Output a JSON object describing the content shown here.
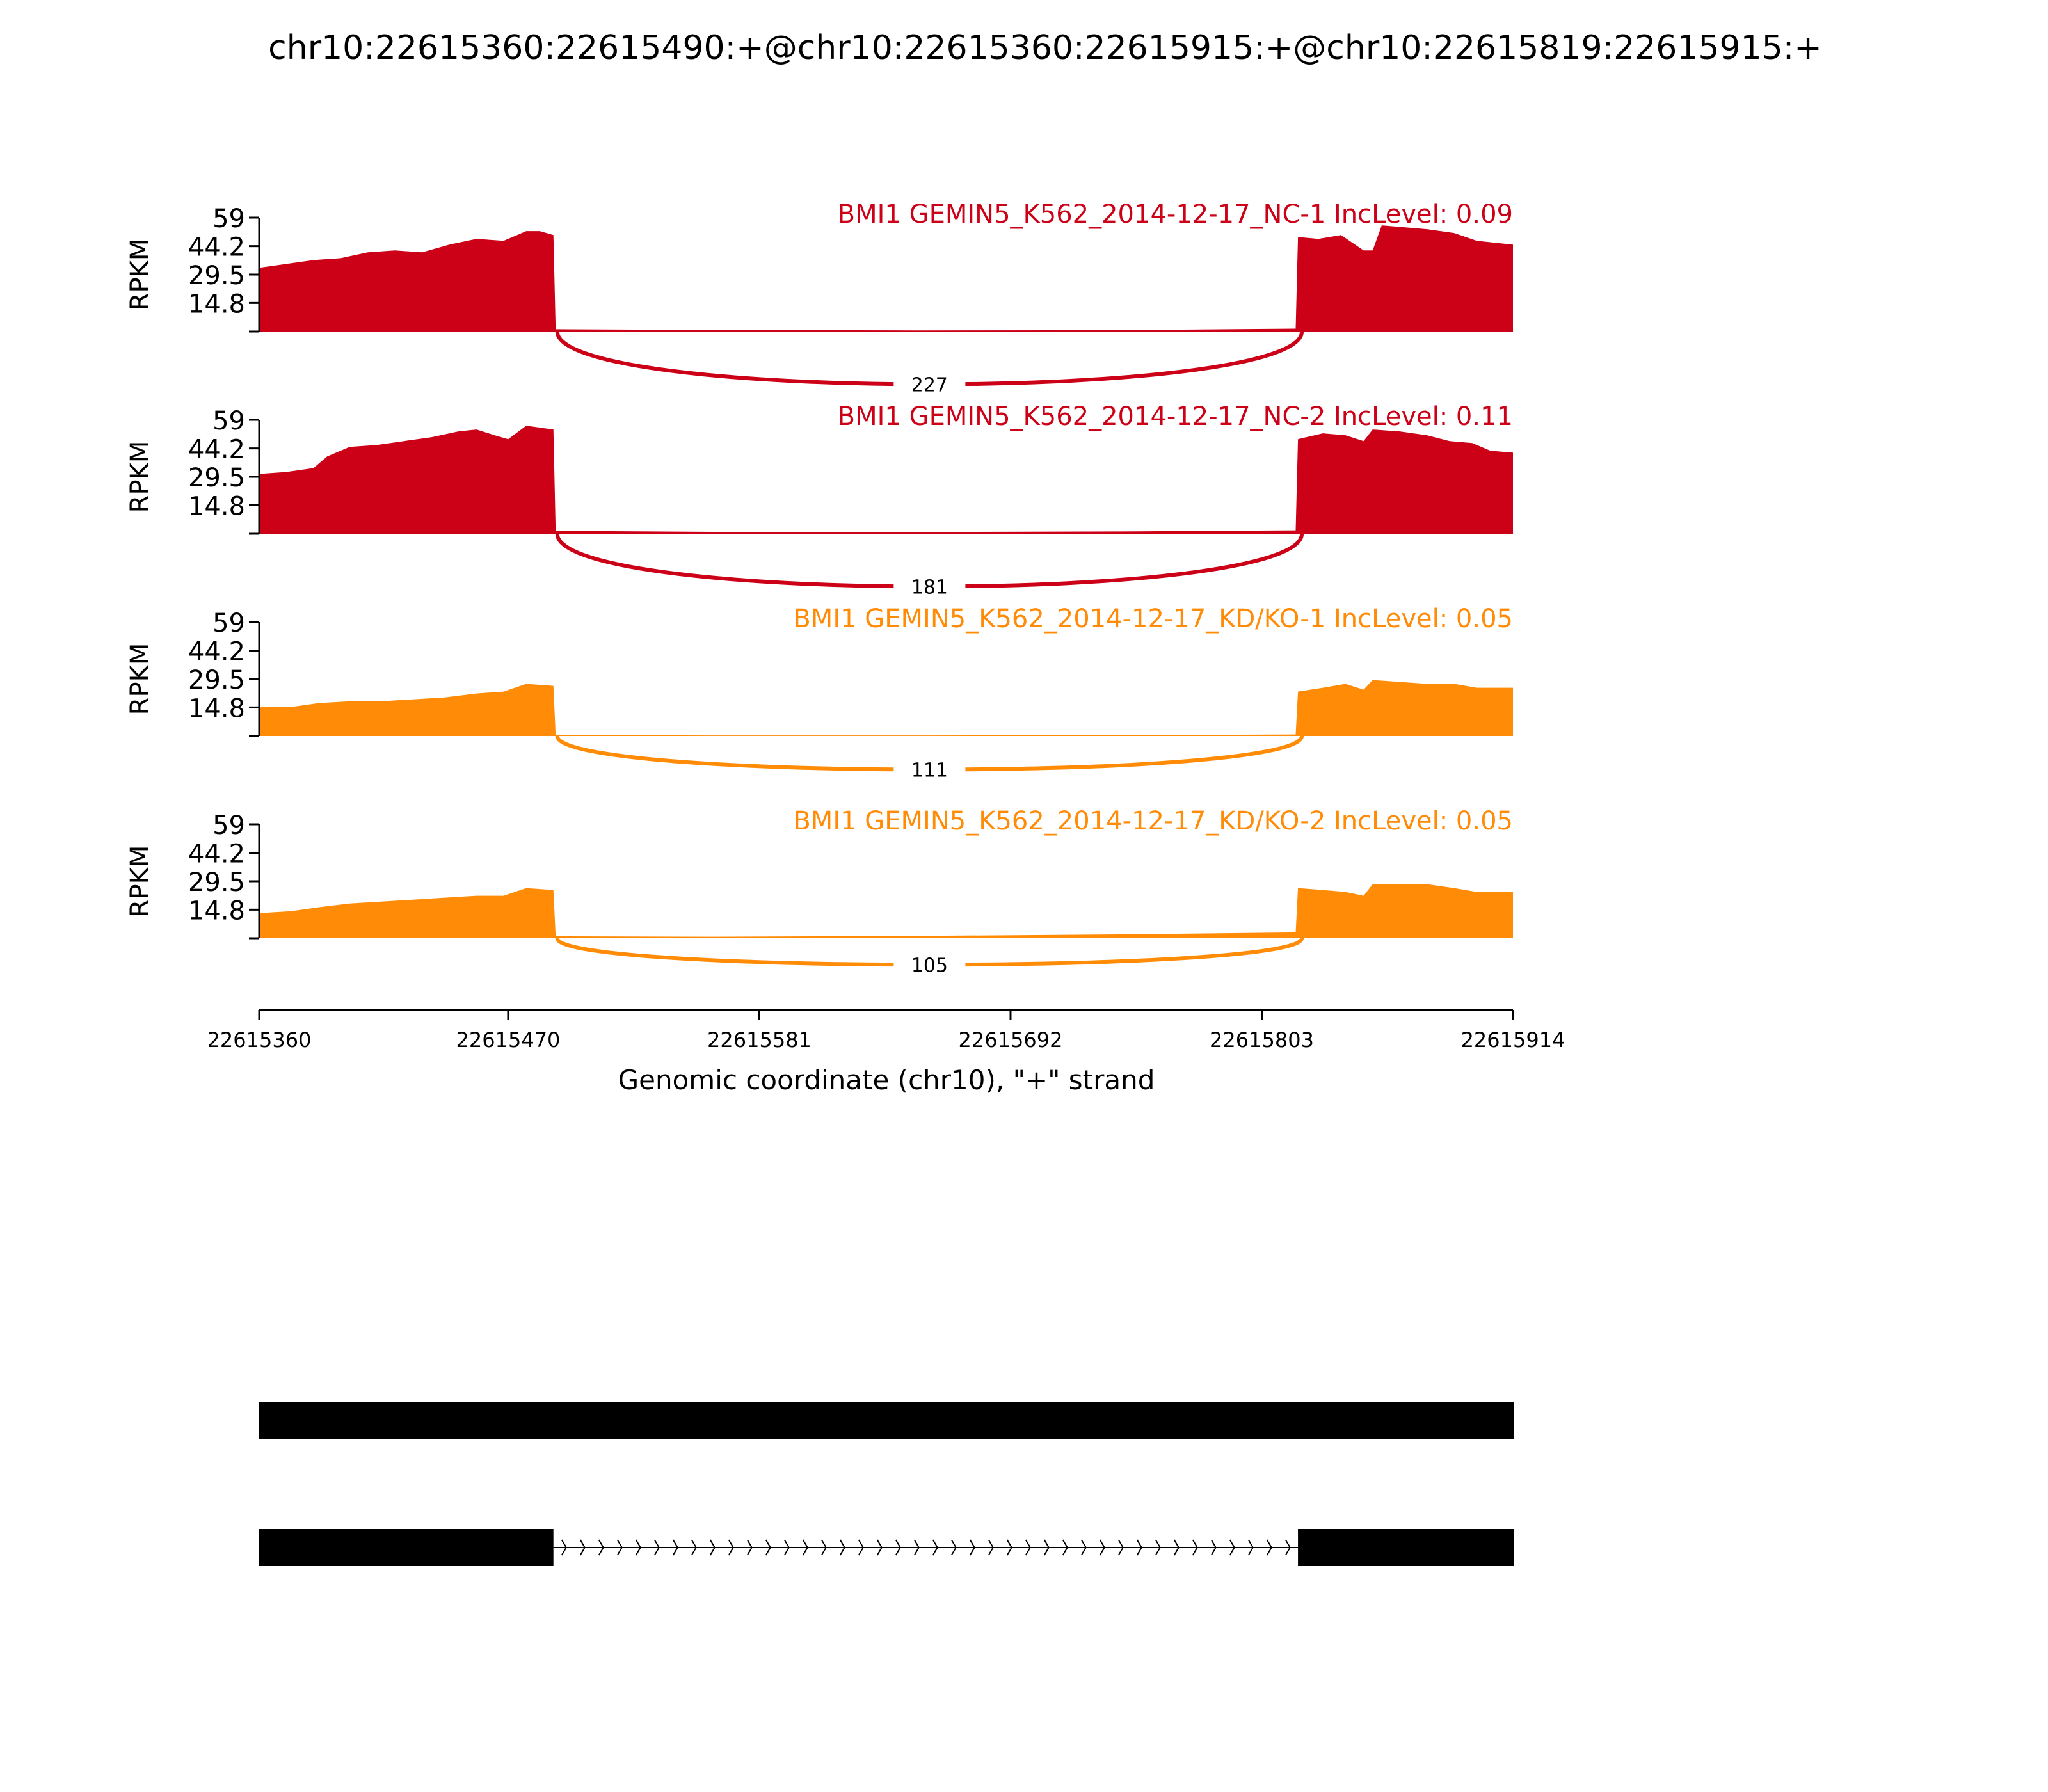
{
  "title": "chr10:22615360:22615490:+@chr10:22615360:22615915:+@chr10:22615819:22615915:+",
  "colors": {
    "nc": "#cc0016",
    "kd": "#ff8b06",
    "axis": "#000000",
    "gene": "#000000"
  },
  "chart_data": {
    "type": "area",
    "xlabel": "Genomic coordinate (chr10), \"+\" strand",
    "xlim": [
      22615360,
      22615914
    ],
    "xticks": [
      "22615360",
      "22615470",
      "22615581",
      "22615692",
      "22615803",
      "22615914"
    ],
    "ylabel": "RPKM",
    "ylim": [
      0,
      59
    ],
    "yticks": [
      "59",
      "44.2",
      "29.5",
      "14.8"
    ],
    "exons": [
      [
        22615360,
        22615490
      ],
      [
        22615819,
        22615914
      ]
    ],
    "tracks": [
      {
        "label": "BMI1 GEMIN5_K562_2014-12-17_NC-1 IncLevel: 0.09",
        "group": "nc",
        "junction_count": "227",
        "coverage": [
          [
            22615360,
            33
          ],
          [
            22615372,
            35
          ],
          [
            22615384,
            37
          ],
          [
            22615396,
            38
          ],
          [
            22615408,
            41
          ],
          [
            22615420,
            42
          ],
          [
            22615432,
            41
          ],
          [
            22615444,
            45
          ],
          [
            22615456,
            48
          ],
          [
            22615468,
            47
          ],
          [
            22615478,
            52
          ],
          [
            22615484,
            52
          ],
          [
            22615490,
            50
          ],
          [
            22615491,
            1.2
          ],
          [
            22615560,
            0.8
          ],
          [
            22615650,
            0.6
          ],
          [
            22615740,
            0.7
          ],
          [
            22615818,
            1.5
          ],
          [
            22615819,
            49
          ],
          [
            22615828,
            48
          ],
          [
            22615838,
            50
          ],
          [
            22615848,
            42
          ],
          [
            22615852,
            42
          ],
          [
            22615856,
            55
          ],
          [
            22615866,
            54
          ],
          [
            22615876,
            53
          ],
          [
            22615888,
            51
          ],
          [
            22615898,
            47
          ],
          [
            22615906,
            46
          ],
          [
            22615914,
            45
          ]
        ]
      },
      {
        "label": "BMI1 GEMIN5_K562_2014-12-17_NC-2 IncLevel: 0.11",
        "group": "nc",
        "junction_count": "181",
        "coverage": [
          [
            22615360,
            31
          ],
          [
            22615372,
            32
          ],
          [
            22615384,
            34
          ],
          [
            22615390,
            40
          ],
          [
            22615400,
            45
          ],
          [
            22615412,
            46
          ],
          [
            22615424,
            48
          ],
          [
            22615436,
            50
          ],
          [
            22615448,
            53
          ],
          [
            22615456,
            54
          ],
          [
            22615464,
            51
          ],
          [
            22615470,
            49
          ],
          [
            22615478,
            56
          ],
          [
            22615484,
            55
          ],
          [
            22615490,
            54
          ],
          [
            22615491,
            1.5
          ],
          [
            22615560,
            1.0
          ],
          [
            22615650,
            0.9
          ],
          [
            22615740,
            1.2
          ],
          [
            22615818,
            1.8
          ],
          [
            22615819,
            49
          ],
          [
            22615830,
            52
          ],
          [
            22615840,
            51
          ],
          [
            22615848,
            48
          ],
          [
            22615852,
            54
          ],
          [
            22615864,
            53
          ],
          [
            22615876,
            51
          ],
          [
            22615886,
            48
          ],
          [
            22615896,
            47
          ],
          [
            22615904,
            43
          ],
          [
            22615914,
            42
          ]
        ]
      },
      {
        "label": "BMI1 GEMIN5_K562_2014-12-17_KD/KO-1 IncLevel: 0.05",
        "group": "kd",
        "junction_count": "111",
        "coverage": [
          [
            22615360,
            15
          ],
          [
            22615374,
            15
          ],
          [
            22615386,
            17
          ],
          [
            22615400,
            18
          ],
          [
            22615414,
            18
          ],
          [
            22615428,
            19
          ],
          [
            22615442,
            20
          ],
          [
            22615456,
            22
          ],
          [
            22615468,
            23
          ],
          [
            22615478,
            27
          ],
          [
            22615490,
            26
          ],
          [
            22615491,
            0.5
          ],
          [
            22615560,
            0.3
          ],
          [
            22615650,
            0.3
          ],
          [
            22615740,
            0.4
          ],
          [
            22615818,
            0.8
          ],
          [
            22615819,
            23
          ],
          [
            22615830,
            25
          ],
          [
            22615840,
            27
          ],
          [
            22615848,
            24
          ],
          [
            22615852,
            29
          ],
          [
            22615864,
            28
          ],
          [
            22615876,
            27
          ],
          [
            22615888,
            27
          ],
          [
            22615898,
            25
          ],
          [
            22615914,
            25
          ]
        ]
      },
      {
        "label": "BMI1 GEMIN5_K562_2014-12-17_KD/KO-2 IncLevel: 0.05",
        "group": "kd",
        "junction_count": "105",
        "coverage": [
          [
            22615360,
            13
          ],
          [
            22615374,
            14
          ],
          [
            22615386,
            16
          ],
          [
            22615400,
            18
          ],
          [
            22615414,
            19
          ],
          [
            22615428,
            20
          ],
          [
            22615442,
            21
          ],
          [
            22615456,
            22
          ],
          [
            22615468,
            22
          ],
          [
            22615478,
            26
          ],
          [
            22615490,
            25
          ],
          [
            22615491,
            1.0
          ],
          [
            22615560,
            0.8
          ],
          [
            22615650,
            1.2
          ],
          [
            22615740,
            2.0
          ],
          [
            22615818,
            3.0
          ],
          [
            22615819,
            26
          ],
          [
            22615830,
            25
          ],
          [
            22615840,
            24
          ],
          [
            22615848,
            22
          ],
          [
            22615852,
            28
          ],
          [
            22615864,
            28
          ],
          [
            22615876,
            28
          ],
          [
            22615888,
            26
          ],
          [
            22615898,
            24
          ],
          [
            22615914,
            24
          ]
        ]
      }
    ],
    "transcripts": [
      {
        "exons": [
          [
            22615360,
            22615915
          ]
        ]
      },
      {
        "exons": [
          [
            22615360,
            22615490
          ],
          [
            22615819,
            22615915
          ]
        ]
      }
    ]
  }
}
